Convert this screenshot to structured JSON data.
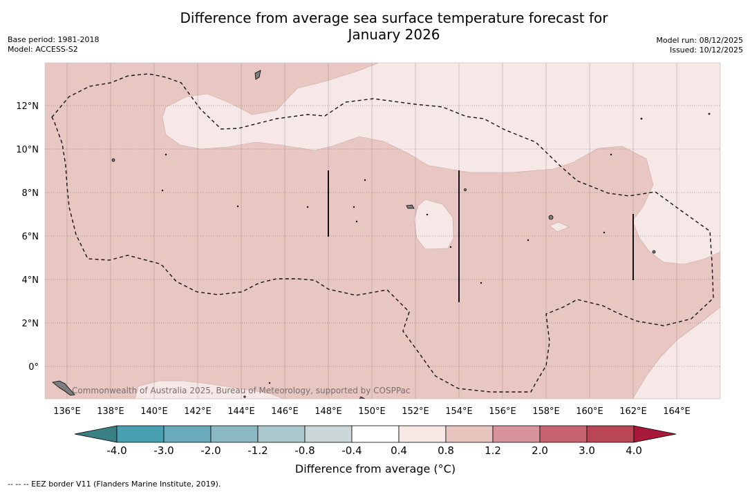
{
  "title_line1": "Difference from average sea surface temperature forecast for",
  "title_line2": "January 2026",
  "base_period": "Base period: 1981-2018",
  "model": "Model: ACCESS-S2",
  "model_run": "Model run: 08/12/2025",
  "issued": "Issued: 10/12/2025",
  "copyright": "Commonwealth of Australia 2025, Bureau of Meteorology, supported by COSPPac",
  "footer_note": "--  --  -- EEZ border V11 (Flanders Marine Institute, 2019).",
  "colorbar": {
    "title": "Difference from average (°C)",
    "ticks": [
      "-4.0",
      "-3.0",
      "-2.0",
      "-1.2",
      "-0.8",
      "-0.4",
      "0.4",
      "0.8",
      "1.2",
      "2.0",
      "3.0",
      "4.0"
    ],
    "colors": [
      "#4aa0b3",
      "#6aabbb",
      "#8ab8c3",
      "#a9c7cc",
      "#ccd7da",
      "#ffffff",
      "#f7e8e6",
      "#e9c5c0",
      "#d8949a",
      "#c8646f",
      "#b94655"
    ],
    "low_extend_color": "#3a7f84",
    "high_extend_color": "#a8193a"
  },
  "map": {
    "lon_labels": [
      "136°E",
      "138°E",
      "140°E",
      "142°E",
      "144°E",
      "146°E",
      "148°E",
      "150°E",
      "152°E",
      "154°E",
      "156°E",
      "158°E",
      "160°E",
      "162°E",
      "164°E"
    ],
    "lat_labels": [
      "12°N",
      "10°N",
      "8°N",
      "6°N",
      "4°N",
      "2°N",
      "0°"
    ],
    "background_color": "#e8c6c1",
    "warm_light_color": "#f6e8e6"
  }
}
